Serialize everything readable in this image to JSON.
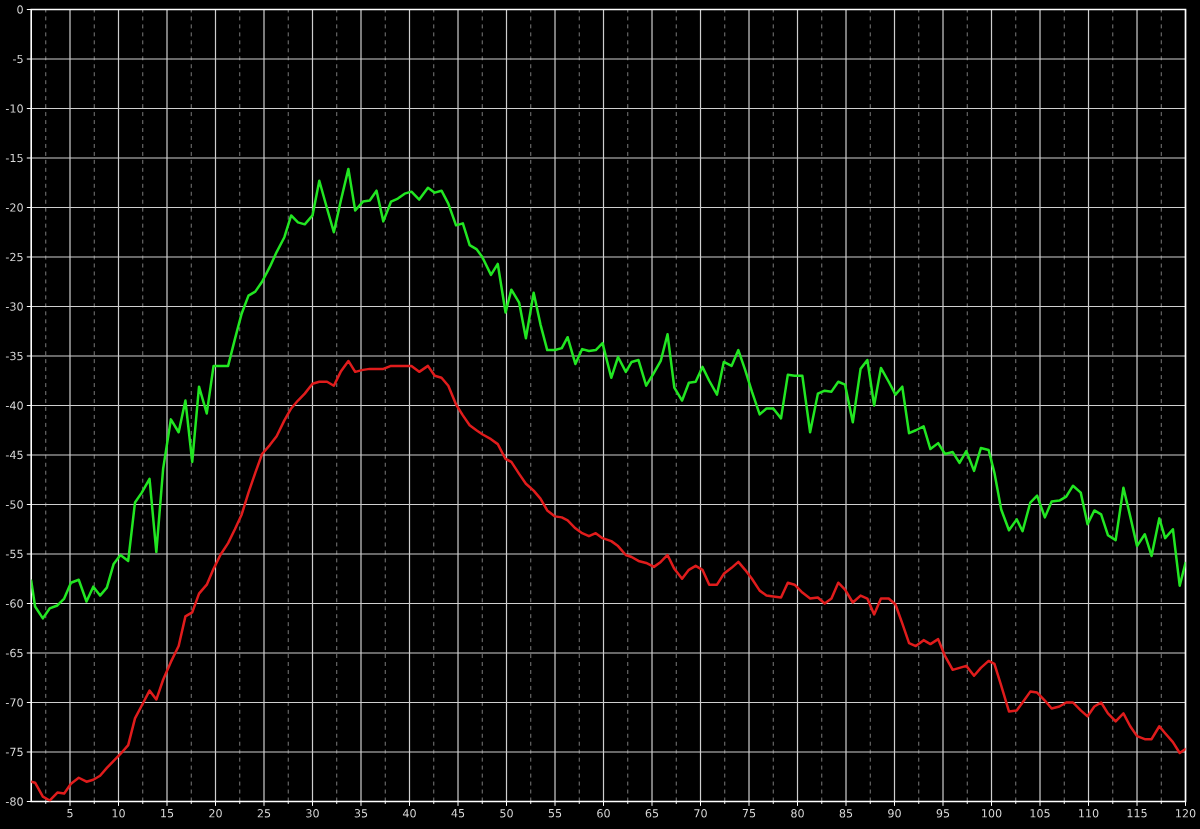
{
  "chart_data": {
    "type": "line",
    "x": [
      1,
      1.4,
      2.2,
      2.9,
      3.7,
      4.4,
      5.1,
      5.9,
      6.7,
      7.4,
      8.1,
      8.8,
      9.5,
      10.2,
      11,
      11.7,
      12.4,
      13.2,
      13.9,
      14.6,
      15.4,
      16.2,
      16.9,
      17.6,
      18.3,
      19.1,
      19.8,
      20.5,
      21.3,
      22,
      22.7,
      23.4,
      24.1,
      24.8,
      25.6,
      26.3,
      27.1,
      27.8,
      28.5,
      29.2,
      30,
      30.7,
      31.5,
      32.2,
      32.9,
      33.7,
      34.4,
      35.2,
      35.9,
      36.6,
      37.3,
      38.1,
      38.8,
      39.5,
      40.2,
      41,
      41.9,
      42.6,
      43.3,
      44,
      44.8,
      45.5,
      46.2,
      46.9,
      47.5,
      48.4,
      49.1,
      49.9,
      50.5,
      51.3,
      52,
      52.8,
      53.5,
      54.2,
      55,
      55.7,
      56.3,
      57.1,
      57.8,
      58.5,
      59.2,
      59.9,
      60.8,
      61.5,
      62.3,
      62.9,
      63.6,
      64.4,
      65.2,
      65.9,
      66.6,
      67.3,
      68.1,
      68.8,
      69.5,
      70.2,
      70.9,
      71.7,
      72.4,
      73.2,
      73.9,
      74.6,
      75.3,
      76.1,
      76.8,
      77.5,
      78.3,
      79,
      79.7,
      80.5,
      81.3,
      82.1,
      82.8,
      83.5,
      84.2,
      84.9,
      85.7,
      86.5,
      87.2,
      87.9,
      88.6,
      89.4,
      90.1,
      90.8,
      91.5,
      92.2,
      93,
      93.7,
      94.5,
      95.2,
      96,
      96.7,
      97.4,
      98.2,
      98.9,
      99.7,
      100.3,
      101,
      101.8,
      102.6,
      103.2,
      104,
      104.7,
      105.5,
      106.2,
      107,
      107.7,
      108.4,
      109.2,
      109.9,
      110.6,
      111.3,
      112,
      112.8,
      113.6,
      114.3,
      115,
      115.8,
      116.5,
      117.3,
      117.9,
      118.7,
      119.4,
      120
    ],
    "series": [
      {
        "color": "#22e622",
        "values": [
          -57.7,
          -60.3,
          -61.5,
          -60.5,
          -60.2,
          -59.5,
          -57.9,
          -57.6,
          -59.8,
          -58.3,
          -59.2,
          -58.4,
          -56,
          -55.1,
          -55.7,
          -49.8,
          -48.8,
          -47.4,
          -54.8,
          -46.4,
          -41.4,
          -42.7,
          -39.5,
          -45.7,
          -38.1,
          -40.8,
          -36,
          -36,
          -36,
          -33.3,
          -30.7,
          -28.9,
          -28.5,
          -27.5,
          -26,
          -24.5,
          -23,
          -20.8,
          -21.5,
          -21.7,
          -20.8,
          -17.3,
          -20.1,
          -22.5,
          -19.4,
          -16.1,
          -20.3,
          -19.4,
          -19.3,
          -18.3,
          -21.4,
          -19.4,
          -19.1,
          -18.6,
          -18.4,
          -19.2,
          -18,
          -18.5,
          -18.3,
          -19.6,
          -21.8,
          -21.6,
          -23.8,
          -24.2,
          -25,
          -26.8,
          -25.7,
          -30.6,
          -28.3,
          -29.6,
          -33.2,
          -28.6,
          -31.8,
          -34.4,
          -34.4,
          -34.2,
          -33.1,
          -35.8,
          -34.3,
          -34.5,
          -34.4,
          -33.7,
          -37.2,
          -35.1,
          -36.6,
          -35.6,
          -35.4,
          -38,
          -36.7,
          -35.5,
          -32.8,
          -38.2,
          -39.5,
          -37.7,
          -37.6,
          -36.1,
          -37.5,
          -38.9,
          -35.6,
          -36,
          -34.4,
          -36.4,
          -38.6,
          -40.9,
          -40.3,
          -40.3,
          -41.3,
          -36.9,
          -37,
          -37,
          -42.7,
          -38.8,
          -38.5,
          -38.6,
          -37.6,
          -37.9,
          -41.7,
          -36.3,
          -35.4,
          -40,
          -36.2,
          -37.6,
          -38.9,
          -38.1,
          -42.8,
          -42.5,
          -42.1,
          -44.4,
          -43.8,
          -44.9,
          -44.7,
          -45.8,
          -44.6,
          -46.6,
          -44.3,
          -44.5,
          -46.8,
          -50.5,
          -52.6,
          -51.5,
          -52.7,
          -49.8,
          -49.1,
          -51.3,
          -49.7,
          -49.6,
          -49.2,
          -48.1,
          -48.8,
          -52,
          -50.6,
          -51,
          -53.1,
          -53.6,
          -48.3,
          -51.2,
          -54.2,
          -53,
          -55.2,
          -51.4,
          -53.4,
          -52.5,
          -58.2,
          -55.9
        ]
      },
      {
        "color": "#e01c1c",
        "values": [
          -78,
          -78.1,
          -79.5,
          -79.9,
          -79.1,
          -79.2,
          -78.2,
          -77.6,
          -78,
          -77.8,
          -77.4,
          -76.6,
          -75.9,
          -75.2,
          -74.3,
          -71.6,
          -70.3,
          -68.8,
          -69.7,
          -67.7,
          -65.9,
          -64.3,
          -61.3,
          -60.9,
          -59,
          -58.1,
          -56.5,
          -55.1,
          -53.9,
          -52.5,
          -51,
          -48.8,
          -46.8,
          -44.9,
          -44,
          -43.1,
          -41.5,
          -40.3,
          -39.5,
          -38.8,
          -37.8,
          -37.6,
          -37.6,
          -38,
          -36.6,
          -35.5,
          -36.6,
          -36.4,
          -36.3,
          -36.3,
          -36.3,
          -36,
          -36,
          -36,
          -36,
          -36.6,
          -36,
          -37,
          -37.2,
          -38,
          -39.9,
          -41,
          -42,
          -42.5,
          -42.9,
          -43.4,
          -43.9,
          -45.4,
          -45.7,
          -46.9,
          -47.9,
          -48.6,
          -49.4,
          -50.6,
          -51.2,
          -51.3,
          -51.6,
          -52.4,
          -52.9,
          -53.2,
          -52.9,
          -53.4,
          -53.7,
          -54.2,
          -55.1,
          -55.3,
          -55.7,
          -55.9,
          -56.3,
          -55.8,
          -55.1,
          -56.5,
          -57.5,
          -56.6,
          -56.2,
          -56.6,
          -58.1,
          -58.1,
          -57,
          -56.4,
          -55.8,
          -56.6,
          -57.5,
          -58.7,
          -59.2,
          -59.3,
          -59.4,
          -57.9,
          -58.1,
          -58.9,
          -59.5,
          -59.4,
          -60,
          -59.5,
          -57.9,
          -58.6,
          -59.9,
          -59.2,
          -59.5,
          -61.1,
          -59.5,
          -59.5,
          -60.1,
          -62,
          -64,
          -64.3,
          -63.7,
          -64.1,
          -63.6,
          -65.3,
          -66.7,
          -66.5,
          -66.3,
          -67.3,
          -66.5,
          -65.8,
          -66.1,
          -68.3,
          -70.9,
          -70.8,
          -70,
          -68.9,
          -69,
          -69.8,
          -70.6,
          -70.4,
          -70,
          -70,
          -70.8,
          -71.4,
          -70.4,
          -70,
          -71.1,
          -71.9,
          -71.1,
          -72.4,
          -73.4,
          -73.7,
          -73.7,
          -72.4,
          -73.1,
          -74,
          -75.1,
          -74.7
        ]
      }
    ],
    "xlim": [
      1,
      120
    ],
    "ylim": [
      -80,
      0
    ],
    "xticks": [
      {
        "value": 2.5,
        "label": null
      },
      5,
      {
        "value": 7.5,
        "label": null
      },
      10,
      {
        "value": 12.5,
        "label": null
      },
      15,
      {
        "value": 17.5,
        "label": null
      },
      20,
      {
        "value": 22.5,
        "label": null
      },
      25,
      {
        "value": 27.5,
        "label": null
      },
      30,
      {
        "value": 32.5,
        "label": null
      },
      35,
      {
        "value": 37.5,
        "label": null
      },
      40,
      {
        "value": 42.5,
        "label": null
      },
      45,
      {
        "value": 47.5,
        "label": null
      },
      50,
      {
        "value": 52.5,
        "label": null
      },
      55,
      {
        "value": 57.5,
        "label": null
      },
      60,
      {
        "value": 62.5,
        "label": null
      },
      65,
      {
        "value": 67.5,
        "label": null
      },
      70,
      {
        "value": 72.5,
        "label": null
      },
      75,
      {
        "value": 77.5,
        "label": null
      },
      80,
      {
        "value": 82.5,
        "label": null
      },
      85,
      {
        "value": 87.5,
        "label": null
      },
      90,
      {
        "value": 92.5,
        "label": null
      },
      95,
      {
        "value": 97.5,
        "label": null
      },
      100,
      {
        "value": 102.5,
        "label": null
      },
      105,
      {
        "value": 107.5,
        "label": null
      },
      110,
      {
        "value": 112.5,
        "label": null
      },
      115,
      {
        "value": 117.5,
        "label": null
      },
      120
    ],
    "yticks": [
      -80,
      -75,
      -70,
      -65,
      -60,
      -55,
      -50,
      -45,
      -40,
      -35,
      -30,
      -25,
      -20,
      -15,
      -10,
      -5,
      0
    ],
    "grid": true,
    "line_style": "solid"
  }
}
